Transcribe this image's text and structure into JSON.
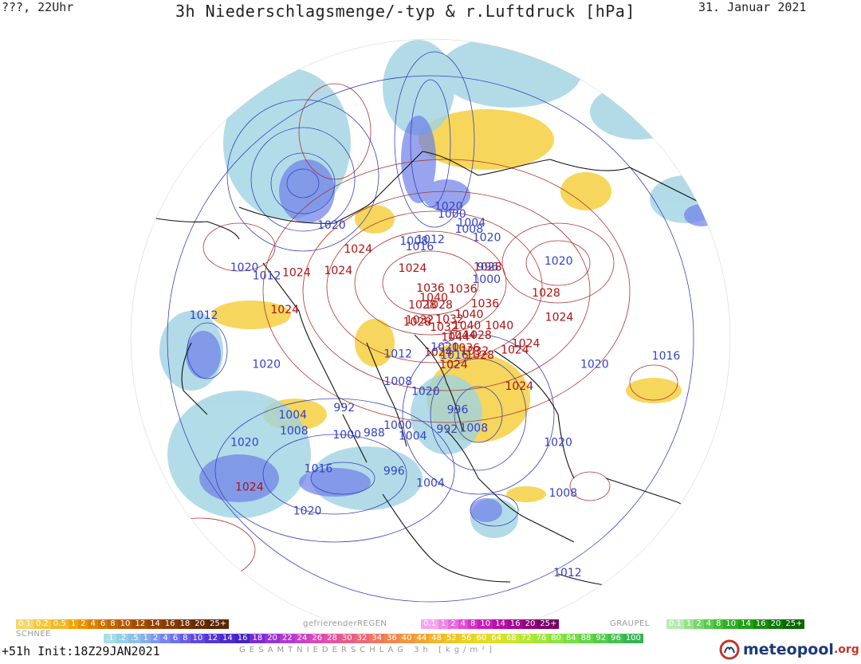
{
  "header": {
    "left": "???, 22Uhr",
    "title": "3h Niederschlagsmenge/-typ & r.Luftdruck [hPa]",
    "date": "31. Januar 2021"
  },
  "footer": {
    "init": "+51h Init:18Z29JAN2021",
    "logo_name": "meteopool",
    "logo_tld": ".org"
  },
  "legend": {
    "snow": {
      "title": "SCHNEE",
      "items": [
        "0.1",
        "0.2",
        "0.5",
        "1",
        "2",
        "4",
        "6",
        "8",
        "10",
        "12",
        "14",
        "16",
        "18",
        "20",
        "25+"
      ],
      "colors": [
        "#f5d76e",
        "#f5c842",
        "#f2b824",
        "#f0a500",
        "#e89300",
        "#dc8200",
        "#cf7300",
        "#c06400",
        "#b25800",
        "#a34c00",
        "#944200",
        "#853a00",
        "#763200",
        "#682b00",
        "#5a2400"
      ]
    },
    "freezing_rain": {
      "title": "gefrierenderREGEN",
      "items": [
        "0.1",
        "1",
        "2",
        "4",
        "8",
        "10",
        "14",
        "16",
        "20",
        "25+"
      ],
      "colors": [
        "#f4a6f0",
        "#ee88e8",
        "#e86adf",
        "#e04cd4",
        "#d530c6",
        "#c81cb6",
        "#b80ea4",
        "#a40890",
        "#8e047c",
        "#780068"
      ]
    },
    "graupel": {
      "title": "GRAUPEL",
      "items": [
        "0.1",
        "1",
        "2",
        "4",
        "8",
        "10",
        "14",
        "16",
        "20",
        "25+"
      ],
      "colors": [
        "#b6eab0",
        "#98e08e",
        "#7ad46e",
        "#5cc850",
        "#44bc38",
        "#30ae24",
        "#229e16",
        "#168c0e",
        "#0c7a08",
        "#046804"
      ]
    },
    "total": {
      "title": "GESAMTNIEDERSCHLAG 3h [kg/m²]",
      "items": [
        ".1",
        ".2",
        ".5",
        "1",
        "2",
        "4",
        "6",
        "8",
        "10",
        "12",
        "14",
        "16",
        "18",
        "20",
        "22",
        "24",
        "26",
        "28",
        "30",
        "32",
        "34",
        "36",
        "40",
        "44",
        "48",
        "52",
        "56",
        "60",
        "64",
        "68",
        "72",
        "76",
        "80",
        "84",
        "88",
        "92",
        "96",
        "100"
      ],
      "colors": [
        "#a6dde6",
        "#94cfe8",
        "#8cbfe8",
        "#86acec",
        "#7f98ee",
        "#7884f0",
        "#6f70ee",
        "#6a5ce8",
        "#5e48e0",
        "#5236d8",
        "#4c2ad0",
        "#4422c4",
        "#7a2ad0",
        "#9632d4",
        "#b03ad0",
        "#c842c4",
        "#d84ab4",
        "#e252a0",
        "#e85c8a",
        "#ec6874",
        "#ee7660",
        "#f0864e",
        "#f2963e",
        "#f2a632",
        "#f2b62a",
        "#f0c426",
        "#ecd024",
        "#e4da24",
        "#d8e226",
        "#c8e62a",
        "#b4e830",
        "#a0e836",
        "#8ce43c",
        "#78de42",
        "#64d648",
        "#52cc4c",
        "#42c050",
        "#34b454"
      ]
    }
  },
  "map": {
    "pressure_labels_high": [
      {
        "text": "1024",
        "lon": 48,
        "lat": 78
      },
      {
        "text": "1024",
        "lon": 95,
        "lat": 60
      },
      {
        "text": "1024",
        "lon": 70,
        "lat": 58
      },
      {
        "text": "1028",
        "lon": 150,
        "lat": 62
      },
      {
        "text": "1028",
        "lon": 100,
        "lat": 75
      },
      {
        "text": "1036",
        "lon": 130,
        "lat": 70
      },
      {
        "text": "1040",
        "lon": 128,
        "lat": 76
      },
      {
        "text": "1032",
        "lon": 140,
        "lat": 82
      },
      {
        "text": "1028",
        "lon": 175,
        "lat": 80
      },
      {
        "text": "1036",
        "lon": 155,
        "lat": 72
      },
      {
        "text": "1040",
        "lon": 115,
        "lat": 78
      },
      {
        "text": "1044",
        "lon": 100,
        "lat": 80
      },
      {
        "text": "1044",
        "lon": 95,
        "lat": 82
      },
      {
        "text": "1036",
        "lon": 80,
        "lat": 78
      },
      {
        "text": "1032",
        "lon": 80,
        "lat": 75
      },
      {
        "text": "1028",
        "lon": 78,
        "lat": 73
      },
      {
        "text": "1040",
        "lon": 108,
        "lat": 68
      },
      {
        "text": "1024",
        "lon": 90,
        "lat": 63
      },
      {
        "text": "1028",
        "lon": 120,
        "lat": 52
      },
      {
        "text": "1024",
        "lon": 108,
        "lat": 50
      },
      {
        "text": "1024",
        "lon": -155,
        "lat": 68
      },
      {
        "text": "1024",
        "lon": -130,
        "lat": 55
      },
      {
        "text": "1028",
        "lon": -155,
        "lat": 80
      },
      {
        "text": "1036",
        "lon": -170,
        "lat": 75
      },
      {
        "text": "1032",
        "lon": -135,
        "lat": 84
      },
      {
        "text": "1028",
        "lon": -125,
        "lat": 84
      },
      {
        "text": "1024",
        "lon": -115,
        "lat": 55
      },
      {
        "text": "1024",
        "lon": -105,
        "lat": 45
      },
      {
        "text": "1024",
        "lon": -90,
        "lat": 45
      },
      {
        "text": "1024",
        "lon": -40,
        "lat": 23
      },
      {
        "text": "1024",
        "lon": 35,
        "lat": 84
      },
      {
        "text": "1040",
        "lon": -175,
        "lat": 78
      },
      {
        "text": "1032",
        "lon": 130,
        "lat": 85
      }
    ],
    "pressure_labels_low": [
      {
        "text": "1020",
        "lon": 60,
        "lat": 84
      },
      {
        "text": "1020",
        "lon": -128,
        "lat": 45
      },
      {
        "text": "1020",
        "lon": -100,
        "lat": 32
      },
      {
        "text": "1020",
        "lon": -70,
        "lat": 40
      },
      {
        "text": "1020",
        "lon": -50,
        "lat": 28
      },
      {
        "text": "1020",
        "lon": -25,
        "lat": 28
      },
      {
        "text": "1020",
        "lon": 60,
        "lat": 40
      },
      {
        "text": "1020",
        "lon": 90,
        "lat": 40
      },
      {
        "text": "1020",
        "lon": 130,
        "lat": 45
      },
      {
        "text": "1020",
        "lon": 160,
        "lat": 55
      },
      {
        "text": "1020",
        "lon": -178,
        "lat": 50
      },
      {
        "text": "1016",
        "lon": 95,
        "lat": 23
      },
      {
        "text": "1016",
        "lon": -163,
        "lat": 62
      },
      {
        "text": "1016",
        "lon": 60,
        "lat": 80
      },
      {
        "text": "1012",
        "lon": -170,
        "lat": 60
      },
      {
        "text": "1012",
        "lon": -100,
        "lat": 38
      },
      {
        "text": "1012",
        "lon": -85,
        "lat": 25
      },
      {
        "text": "1012",
        "lon": -50,
        "lat": 78
      },
      {
        "text": "1012",
        "lon": 40,
        "lat": 15
      },
      {
        "text": "1008",
        "lon": -160,
        "lat": 60
      },
      {
        "text": "1008",
        "lon": 35,
        "lat": 58
      },
      {
        "text": "1008",
        "lon": -25,
        "lat": 72
      },
      {
        "text": "1008",
        "lon": -45,
        "lat": 40
      },
      {
        "text": "1008",
        "lon": 50,
        "lat": 30
      },
      {
        "text": "1008",
        "lon": 170,
        "lat": 55
      },
      {
        "text": "1004",
        "lon": 170,
        "lat": 53
      },
      {
        "text": "1004",
        "lon": 0,
        "lat": 58
      },
      {
        "text": "1004",
        "lon": 10,
        "lat": 45
      },
      {
        "text": "1004",
        "lon": -50,
        "lat": 42
      },
      {
        "text": "1000",
        "lon": 180,
        "lat": 52
      },
      {
        "text": "1000",
        "lon": 145,
        "lat": 65
      },
      {
        "text": "1000",
        "lon": -10,
        "lat": 60
      },
      {
        "text": "1000",
        "lon": -30,
        "lat": 50
      },
      {
        "text": "996",
        "lon": 150,
        "lat": 62
      },
      {
        "text": "996",
        "lon": 30,
        "lat": 65
      },
      {
        "text": "996",
        "lon": -5,
        "lat": 47
      },
      {
        "text": "992",
        "lon": 20,
        "lat": 60
      },
      {
        "text": "992",
        "lon": -40,
        "lat": 55
      },
      {
        "text": "988",
        "lon": -20,
        "lat": 55
      },
      {
        "text": "1016",
        "lon": -30,
        "lat": 38
      },
      {
        "text": "1020",
        "lon": 5,
        "lat": 72
      }
    ]
  }
}
